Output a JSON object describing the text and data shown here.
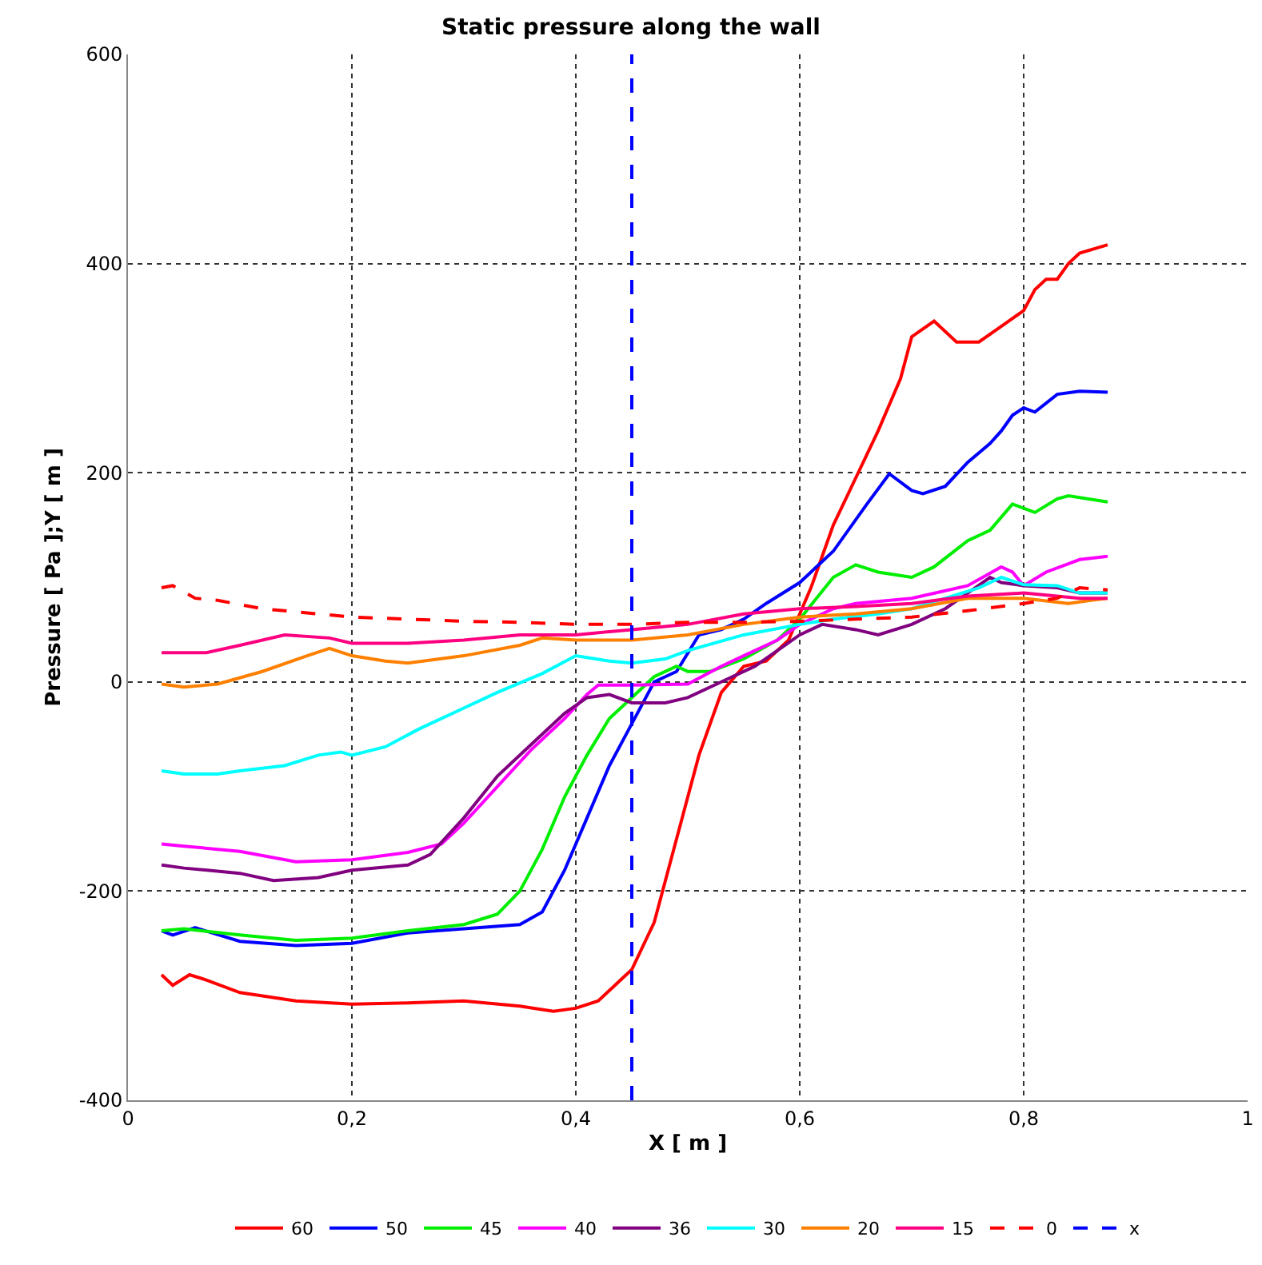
{
  "chart_data": {
    "type": "line",
    "title": "Static pressure along the wall",
    "xlabel": "X [ m ]",
    "ylabel": "Pressure [ Pa ];Y [ m ]",
    "xlim": [
      0,
      1
    ],
    "xticks": [
      0,
      {
        "value": 0.2,
        "label": "0,2"
      },
      {
        "value": 0.4,
        "label": "0,4"
      },
      {
        "value": 0.6,
        "label": "0,6"
      },
      {
        "value": 0.8,
        "label": "0,8"
      },
      1
    ],
    "ylim": [
      -400,
      600
    ],
    "yticks": [
      -400,
      -200,
      0,
      200,
      400,
      600
    ],
    "grid": true,
    "legend": "bottom",
    "marker": "none",
    "line_style": "solid",
    "series": [
      {
        "name": "60",
        "color": "#ff0000",
        "x": [
          0.03,
          0.04,
          0.055,
          0.07,
          0.1,
          0.15,
          0.2,
          0.25,
          0.3,
          0.35,
          0.38,
          0.4,
          0.42,
          0.44,
          0.45,
          0.47,
          0.49,
          0.51,
          0.53,
          0.55,
          0.57,
          0.59,
          0.61,
          0.63,
          0.65,
          0.67,
          0.69,
          0.7,
          0.72,
          0.74,
          0.76,
          0.78,
          0.8,
          0.81,
          0.82,
          0.83,
          0.84,
          0.85,
          0.875
        ],
        "values": [
          -280,
          -290,
          -280,
          -285,
          -297,
          -305,
          -308,
          -307,
          -305,
          -310,
          -315,
          -312,
          -305,
          -285,
          -275,
          -230,
          -150,
          -70,
          -10,
          15,
          20,
          40,
          90,
          150,
          195,
          240,
          290,
          330,
          345,
          325,
          325,
          340,
          355,
          375,
          385,
          385,
          400,
          410,
          418
        ]
      },
      {
        "name": "50",
        "color": "#0000ff",
        "x": [
          0.03,
          0.04,
          0.06,
          0.1,
          0.15,
          0.2,
          0.25,
          0.3,
          0.35,
          0.37,
          0.39,
          0.41,
          0.43,
          0.45,
          0.47,
          0.49,
          0.51,
          0.53,
          0.55,
          0.57,
          0.6,
          0.63,
          0.66,
          0.68,
          0.7,
          0.71,
          0.73,
          0.75,
          0.77,
          0.78,
          0.79,
          0.8,
          0.81,
          0.83,
          0.85,
          0.875
        ],
        "values": [
          -238,
          -242,
          -235,
          -248,
          -252,
          -250,
          -240,
          -236,
          -232,
          -220,
          -180,
          -130,
          -80,
          -40,
          0,
          10,
          45,
          50,
          60,
          75,
          95,
          125,
          170,
          199,
          183,
          180,
          187,
          210,
          228,
          240,
          255,
          262,
          258,
          275,
          278,
          277
        ]
      },
      {
        "name": "45",
        "color": "#00ee00",
        "x": [
          0.03,
          0.05,
          0.1,
          0.15,
          0.2,
          0.25,
          0.3,
          0.33,
          0.35,
          0.37,
          0.39,
          0.41,
          0.43,
          0.45,
          0.47,
          0.49,
          0.5,
          0.52,
          0.55,
          0.58,
          0.6,
          0.63,
          0.65,
          0.67,
          0.7,
          0.72,
          0.75,
          0.77,
          0.79,
          0.81,
          0.83,
          0.84,
          0.875
        ],
        "values": [
          -238,
          -236,
          -242,
          -247,
          -245,
          -238,
          -232,
          -222,
          -200,
          -160,
          -110,
          -70,
          -35,
          -15,
          5,
          15,
          10,
          10,
          22,
          40,
          60,
          100,
          112,
          105,
          100,
          110,
          135,
          145,
          170,
          162,
          175,
          178,
          172
        ]
      },
      {
        "name": "40",
        "color": "#ff00ff",
        "x": [
          0.03,
          0.05,
          0.1,
          0.15,
          0.2,
          0.25,
          0.28,
          0.3,
          0.33,
          0.36,
          0.39,
          0.41,
          0.42,
          0.45,
          0.5,
          0.53,
          0.55,
          0.58,
          0.6,
          0.63,
          0.65,
          0.7,
          0.75,
          0.78,
          0.79,
          0.8,
          0.82,
          0.85,
          0.875
        ],
        "values": [
          -155,
          -157,
          -162,
          -172,
          -170,
          -163,
          -155,
          -135,
          -100,
          -65,
          -35,
          -12,
          -3,
          -3,
          -2,
          15,
          25,
          40,
          55,
          70,
          75,
          80,
          92,
          110,
          105,
          92,
          105,
          117,
          120
        ]
      },
      {
        "name": "36",
        "color": "#800080",
        "x": [
          0.03,
          0.05,
          0.1,
          0.13,
          0.17,
          0.2,
          0.25,
          0.27,
          0.3,
          0.33,
          0.36,
          0.39,
          0.41,
          0.43,
          0.45,
          0.48,
          0.5,
          0.53,
          0.56,
          0.58,
          0.6,
          0.62,
          0.65,
          0.67,
          0.7,
          0.73,
          0.75,
          0.77,
          0.78,
          0.8,
          0.83,
          0.85,
          0.875
        ],
        "values": [
          -175,
          -178,
          -183,
          -190,
          -187,
          -180,
          -175,
          -165,
          -130,
          -90,
          -60,
          -30,
          -15,
          -12,
          -20,
          -20,
          -15,
          0,
          15,
          30,
          45,
          55,
          50,
          45,
          55,
          70,
          85,
          100,
          95,
          92,
          90,
          85,
          85
        ]
      },
      {
        "name": "30",
        "color": "#00ffff",
        "x": [
          0.03,
          0.05,
          0.08,
          0.1,
          0.14,
          0.17,
          0.19,
          0.2,
          0.23,
          0.26,
          0.3,
          0.33,
          0.37,
          0.4,
          0.43,
          0.45,
          0.48,
          0.5,
          0.55,
          0.6,
          0.63,
          0.67,
          0.7,
          0.73,
          0.76,
          0.78,
          0.8,
          0.83,
          0.85,
          0.875
        ],
        "values": [
          -85,
          -88,
          -88,
          -85,
          -80,
          -70,
          -67,
          -70,
          -62,
          -45,
          -25,
          -10,
          8,
          25,
          20,
          18,
          22,
          30,
          45,
          55,
          60,
          65,
          70,
          80,
          90,
          100,
          93,
          92,
          85,
          85
        ]
      },
      {
        "name": "20",
        "color": "#ff8000",
        "x": [
          0.03,
          0.05,
          0.08,
          0.12,
          0.16,
          0.18,
          0.2,
          0.23,
          0.25,
          0.3,
          0.35,
          0.37,
          0.4,
          0.45,
          0.5,
          0.55,
          0.6,
          0.65,
          0.7,
          0.75,
          0.8,
          0.84,
          0.86,
          0.875
        ],
        "values": [
          -2,
          -5,
          -2,
          10,
          25,
          32,
          25,
          20,
          18,
          25,
          35,
          42,
          40,
          40,
          45,
          55,
          62,
          65,
          70,
          80,
          80,
          75,
          78,
          80
        ]
      },
      {
        "name": "15",
        "color": "#ff0080",
        "x": [
          0.03,
          0.07,
          0.1,
          0.14,
          0.18,
          0.2,
          0.25,
          0.3,
          0.35,
          0.4,
          0.45,
          0.5,
          0.55,
          0.6,
          0.65,
          0.7,
          0.75,
          0.8,
          0.85,
          0.875
        ],
        "values": [
          28,
          28,
          35,
          45,
          42,
          37,
          37,
          40,
          45,
          45,
          50,
          55,
          65,
          70,
          72,
          75,
          82,
          85,
          80,
          80
        ]
      },
      {
        "name": "0",
        "color": "#ff0000",
        "line_style": "dashed",
        "x": [
          0.03,
          0.04,
          0.06,
          0.08,
          0.12,
          0.15,
          0.2,
          0.25,
          0.3,
          0.35,
          0.4,
          0.45,
          0.5,
          0.55,
          0.6,
          0.65,
          0.7,
          0.75,
          0.8,
          0.83,
          0.85,
          0.875
        ],
        "values": [
          90,
          92,
          80,
          78,
          70,
          67,
          62,
          60,
          58,
          57,
          55,
          55,
          57,
          57,
          58,
          60,
          62,
          68,
          75,
          80,
          90,
          88
        ]
      },
      {
        "name": "x",
        "color": "#0000ff",
        "line_style": "dashed",
        "x": [
          0.45,
          0.45
        ],
        "values": [
          -400,
          600
        ]
      }
    ]
  }
}
